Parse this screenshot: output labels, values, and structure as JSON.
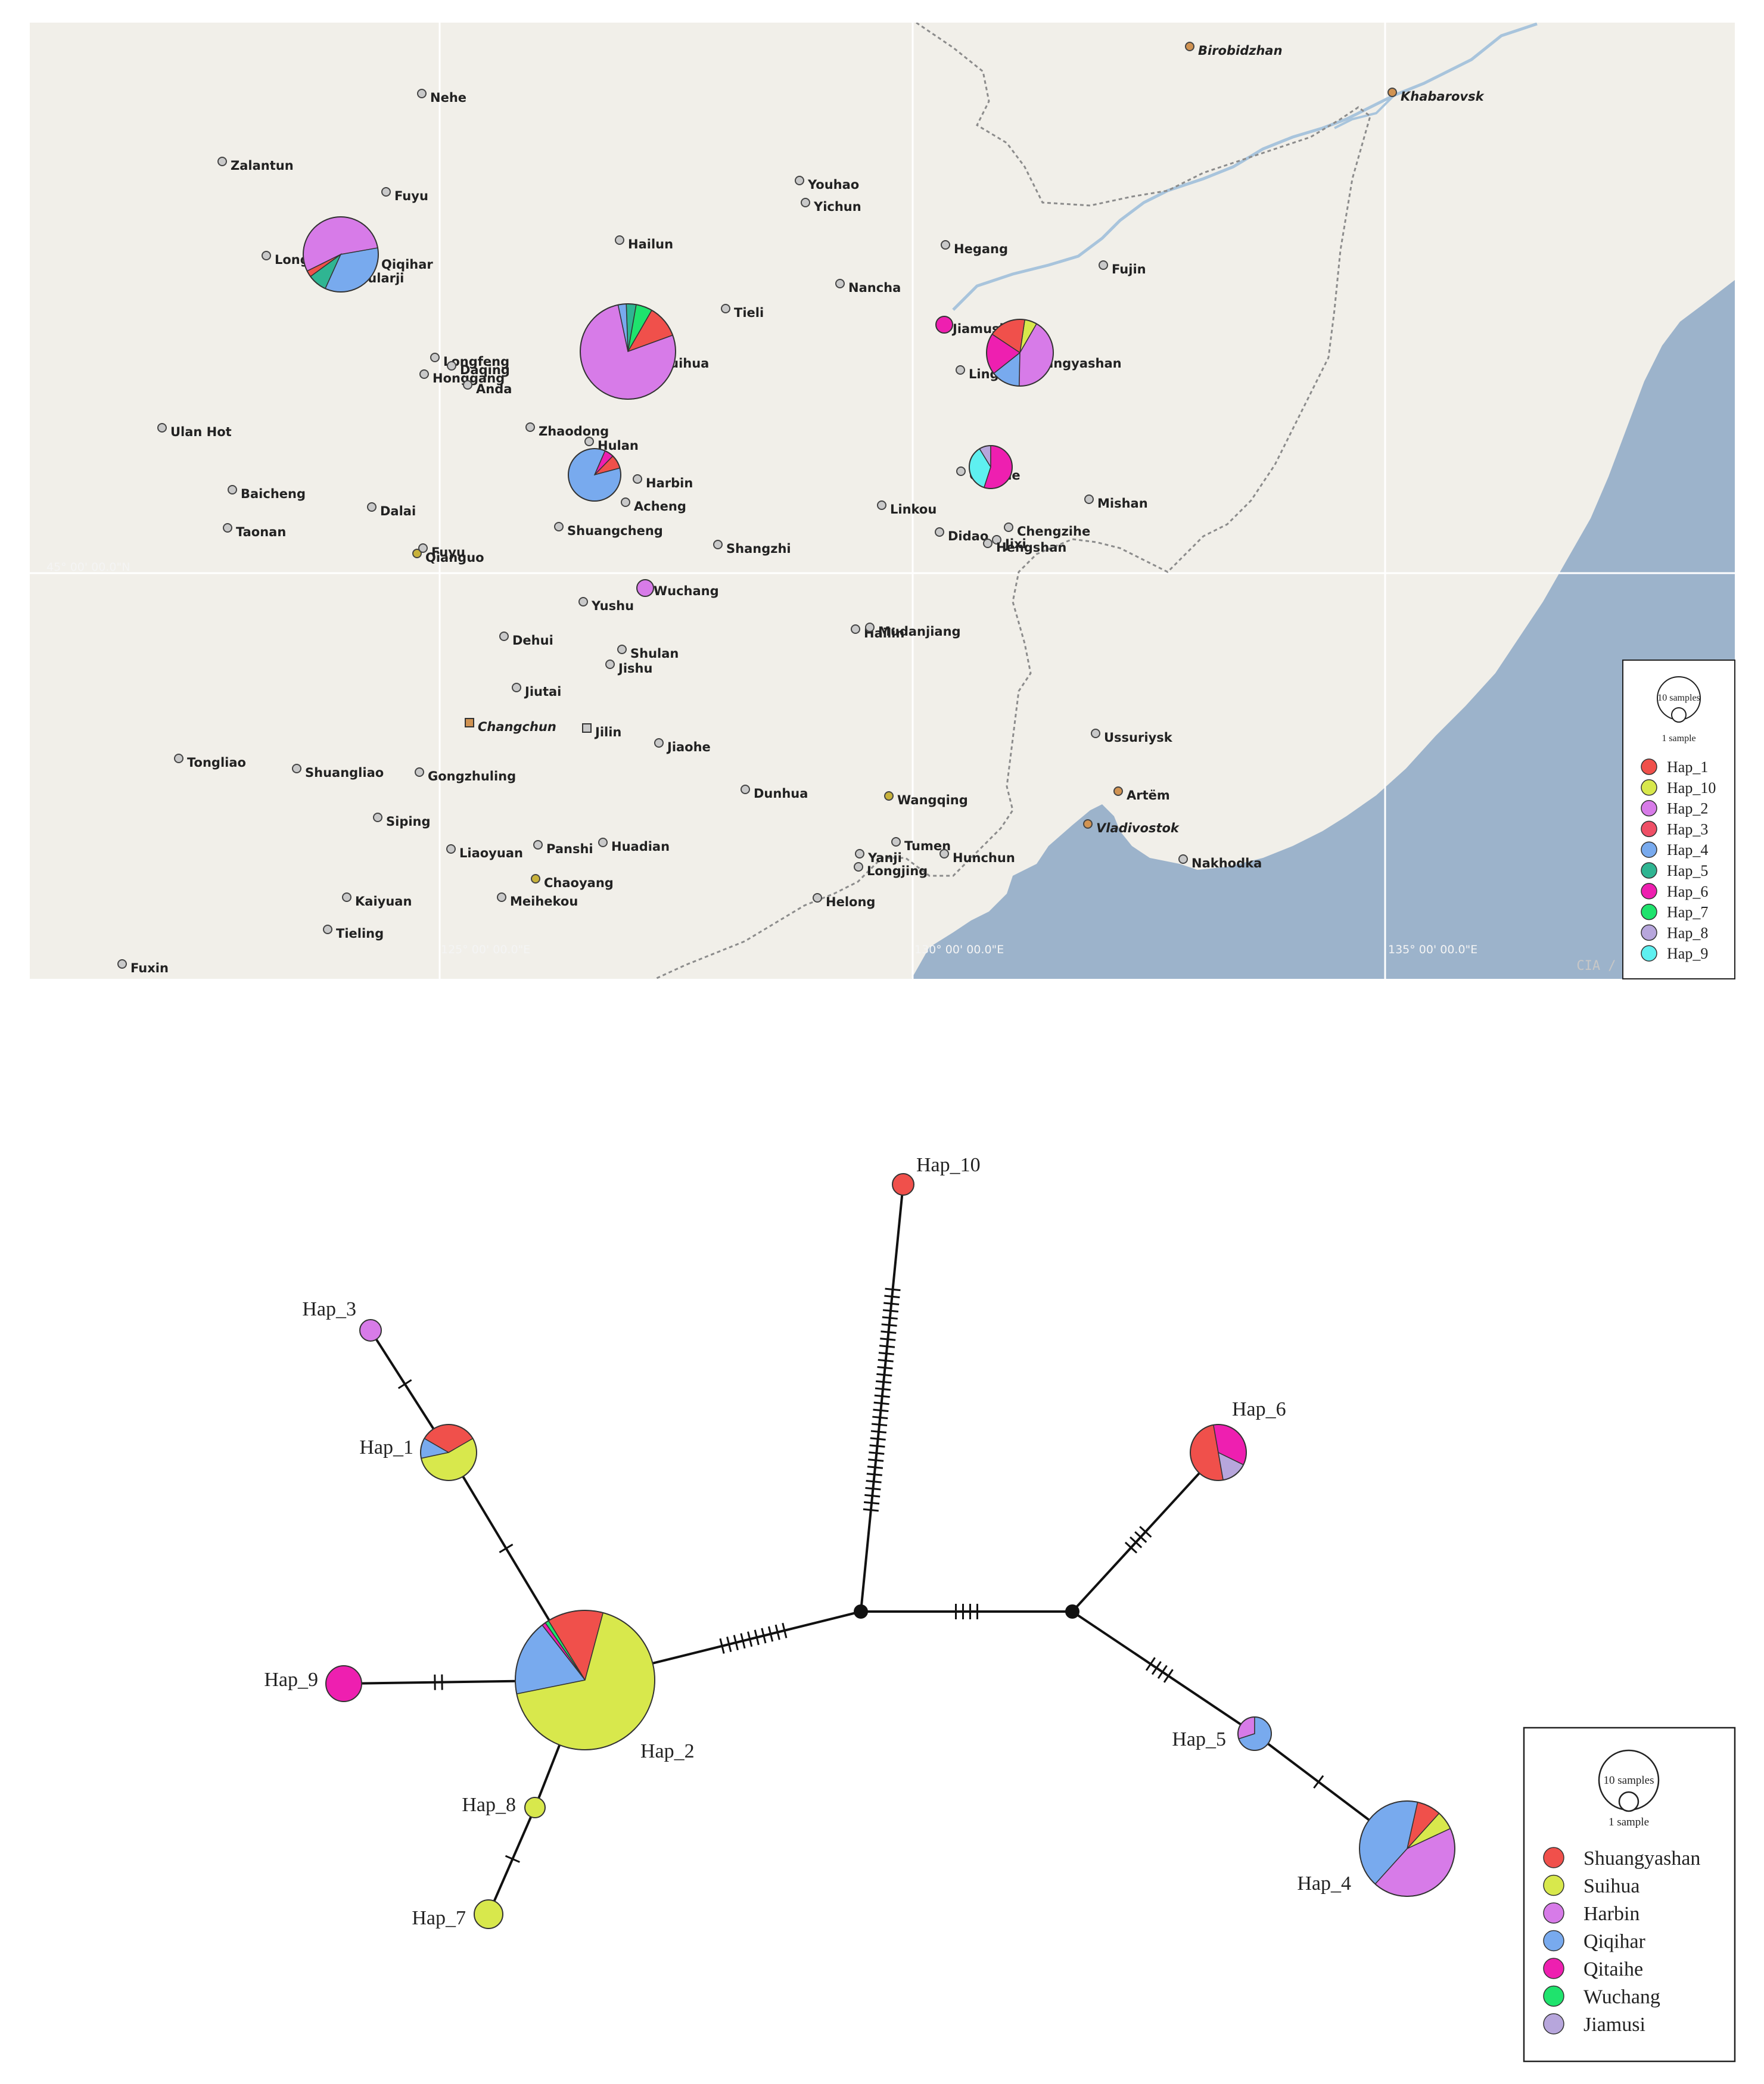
{
  "map": {
    "colors": {
      "land": "#f1efe9",
      "sea": "#9cb3cb",
      "grid": "#ffffff",
      "border": "#8c8c8c",
      "river": "#a8c4dc",
      "city_dot": "#c9c9c9",
      "capital_dot": "#d19352"
    },
    "grid_labels": [
      {
        "text": "45° 00' 00.0\"N"
      },
      {
        "text": "125° 00' 00.0\"E"
      },
      {
        "text": "130° 00' 00.0\"E"
      },
      {
        "text": "135° 00' 00.0\"E"
      }
    ],
    "credit": "CIA / Public Domain",
    "cities": [
      {
        "name": "Nehe"
      },
      {
        "name": "Zalantun"
      },
      {
        "name": "Fuyu"
      },
      {
        "name": "Longjiang"
      },
      {
        "name": "Qiqihar"
      },
      {
        "name": "Fularji"
      },
      {
        "name": "Hailun"
      },
      {
        "name": "Youhao"
      },
      {
        "name": "Yichun"
      },
      {
        "name": "Hegang"
      },
      {
        "name": "Fujin"
      },
      {
        "name": "Nancha"
      },
      {
        "name": "Tieli"
      },
      {
        "name": "Jiamusi"
      },
      {
        "name": "Shuangyashan"
      },
      {
        "name": "Lingdong"
      },
      {
        "name": "Suihua"
      },
      {
        "name": "Longfeng"
      },
      {
        "name": "Daqing"
      },
      {
        "name": "Honggang"
      },
      {
        "name": "Anda"
      },
      {
        "name": "Zhaodong"
      },
      {
        "name": "Hulan"
      },
      {
        "name": "Harbin"
      },
      {
        "name": "Acheng"
      },
      {
        "name": "Ulan Hot"
      },
      {
        "name": "Baicheng"
      },
      {
        "name": "Dalai"
      },
      {
        "name": "Taonan"
      },
      {
        "name": "Qianguo"
      },
      {
        "name": "Fuyu"
      },
      {
        "name": "Shuangcheng"
      },
      {
        "name": "Shangzhi"
      },
      {
        "name": "Qitaihe"
      },
      {
        "name": "Linkou"
      },
      {
        "name": "Didao"
      },
      {
        "name": "Chengzihe"
      },
      {
        "name": "Jixi"
      },
      {
        "name": "Hengshan"
      },
      {
        "name": "Mishan"
      },
      {
        "name": "Wuchang"
      },
      {
        "name": "Yushu"
      },
      {
        "name": "Hailin"
      },
      {
        "name": "Mudanjiang"
      },
      {
        "name": "Dehui"
      },
      {
        "name": "Shulan"
      },
      {
        "name": "Jishu"
      },
      {
        "name": "Jiutai"
      },
      {
        "name": "Changchun"
      },
      {
        "name": "Jilin"
      },
      {
        "name": "Jiaohe"
      },
      {
        "name": "Tongliao"
      },
      {
        "name": "Shuangliao"
      },
      {
        "name": "Gongzhuling"
      },
      {
        "name": "Dunhua"
      },
      {
        "name": "Wangqing"
      },
      {
        "name": "Siping"
      },
      {
        "name": "Liaoyuan"
      },
      {
        "name": "Panshi"
      },
      {
        "name": "Huadian"
      },
      {
        "name": "Tumen"
      },
      {
        "name": "Yanji"
      },
      {
        "name": "Longjing"
      },
      {
        "name": "Hunchun"
      },
      {
        "name": "Chaoyang"
      },
      {
        "name": "Meihekou"
      },
      {
        "name": "Kaiyuan"
      },
      {
        "name": "Helong"
      },
      {
        "name": "Tieling"
      },
      {
        "name": "Fuxin"
      },
      {
        "name": "Birobidzhan"
      },
      {
        "name": "Khabarovsk"
      },
      {
        "name": "Ussuriysk"
      },
      {
        "name": "Artëm"
      },
      {
        "name": "Vladivostok"
      },
      {
        "name": "Nakhodka"
      }
    ],
    "legend": {
      "scale_big": "10 samples",
      "scale_small": "1 sample",
      "items": [
        {
          "label": "Hap_1",
          "color": "#f0504b"
        },
        {
          "label": "Hap_10",
          "color": "#d8e84c"
        },
        {
          "label": "Hap_2",
          "color": "#d77be8"
        },
        {
          "label": "Hap_3",
          "color": "#ef4f66"
        },
        {
          "label": "Hap_4",
          "color": "#78aaee"
        },
        {
          "label": "Hap_5",
          "color": "#2fb592"
        },
        {
          "label": "Hap_6",
          "color": "#ee1fb0"
        },
        {
          "label": "Hap_7",
          "color": "#1fe36d"
        },
        {
          "label": "Hap_8",
          "color": "#b7a6dc"
        },
        {
          "label": "Hap_9",
          "color": "#5ef0f0"
        }
      ]
    },
    "pies": [
      {
        "site": "Qiqihar",
        "total": 11,
        "slices": [
          {
            "hap": "Hap_2",
            "value": 6
          },
          {
            "hap": "Hap_1",
            "value": 0.3
          },
          {
            "hap": "Hap_5",
            "value": 0.9
          },
          {
            "hap": "Hap_4",
            "value": 3.8
          }
        ]
      },
      {
        "site": "Suihua",
        "total": 18,
        "slices": [
          {
            "hap": "Hap_1",
            "value": 2
          },
          {
            "hap": "Hap_7",
            "value": 1
          },
          {
            "hap": "Hap_5",
            "value": 0.6
          },
          {
            "hap": "Hap_4",
            "value": 0.5
          },
          {
            "hap": "Hap_2",
            "value": 13.9
          }
        ]
      },
      {
        "site": "Harbin",
        "total": 7,
        "slices": [
          {
            "hap": "Hap_1",
            "value": 0.6
          },
          {
            "hap": "Hap_6",
            "value": 0.4
          },
          {
            "hap": "Hap_4",
            "value": 6
          }
        ]
      },
      {
        "site": "Wuchang",
        "total": 1,
        "slices": [
          {
            "hap": "Hap_2",
            "value": 1
          }
        ]
      },
      {
        "site": "Jiamusi",
        "total": 1,
        "slices": [
          {
            "hap": "Hap_6",
            "value": 1
          }
        ]
      },
      {
        "site": "Shuangyashan",
        "total": 10,
        "slices": [
          {
            "hap": "Hap_10",
            "value": 0.6
          },
          {
            "hap": "Hap_1",
            "value": 1.8
          },
          {
            "hap": "Hap_6",
            "value": 2
          },
          {
            "hap": "Hap_4",
            "value": 1.4
          },
          {
            "hap": "Hap_2",
            "value": 4.2
          }
        ]
      },
      {
        "site": "Qitaihe",
        "total": 4,
        "slices": [
          {
            "hap": "Hap_8",
            "value": 0.35
          },
          {
            "hap": "Hap_9",
            "value": 1.45
          },
          {
            "hap": "Hap_6",
            "value": 2.2
          }
        ]
      }
    ]
  },
  "network": {
    "colors": {
      "Shuangyashan": "#f0504b",
      "Suihua": "#d8e84c",
      "Harbin": "#d77be8",
      "Qiqihar": "#78aaee",
      "Qitaihe": "#ee1fb0",
      "Wuchang": "#1fe36d",
      "Jiamusi": "#b7a6dc"
    },
    "nodes": [
      {
        "id": "Hap_10",
        "label": "Hap_10",
        "slices": [
          {
            "pop": "Shuangyashan",
            "value": 1
          }
        ]
      },
      {
        "id": "Hap_3",
        "label": "Hap_3",
        "slices": [
          {
            "pop": "Harbin",
            "value": 1
          }
        ]
      },
      {
        "id": "Hap_1",
        "label": "Hap_1",
        "slices": [
          {
            "pop": "Shuangyashan",
            "value": 1
          },
          {
            "pop": "Qiqihar",
            "value": 0.35
          },
          {
            "pop": "Suihua",
            "value": 1.65
          }
        ]
      },
      {
        "id": "Hap_9",
        "label": "Hap_9",
        "slices": [
          {
            "pop": "Qitaihe",
            "value": 1
          }
        ]
      },
      {
        "id": "Hap_2",
        "label": "Hap_2",
        "slices": [
          {
            "pop": "Shuangyashan",
            "value": 2.2
          },
          {
            "pop": "Wuchang",
            "value": 0.15
          },
          {
            "pop": "Qitaihe",
            "value": 0.15
          },
          {
            "pop": "Qiqihar",
            "value": 3
          },
          {
            "pop": "Suihua",
            "value": 11.5
          }
        ]
      },
      {
        "id": "Hap_8",
        "label": "Hap_8",
        "slices": [
          {
            "pop": "Suihua",
            "value": 1
          }
        ]
      },
      {
        "id": "Hap_7",
        "label": "Hap_7",
        "slices": [
          {
            "pop": "Suihua",
            "value": 1
          }
        ]
      },
      {
        "id": "Hap_6",
        "label": "Hap_6",
        "slices": [
          {
            "pop": "Shuangyashan",
            "value": 2
          },
          {
            "pop": "Jiamusi",
            "value": 0.6
          },
          {
            "pop": "Qitaihe",
            "value": 1.4
          }
        ]
      },
      {
        "id": "Hap_5",
        "label": "Hap_5",
        "slices": [
          {
            "pop": "Harbin",
            "value": 0.3
          },
          {
            "pop": "Qiqihar",
            "value": 0.7
          }
        ]
      },
      {
        "id": "Hap_4",
        "label": "Hap_4",
        "slices": [
          {
            "pop": "Suihua",
            "value": 0.7
          },
          {
            "pop": "Shuangyashan",
            "value": 0.9
          },
          {
            "pop": "Qiqihar",
            "value": 4.6
          },
          {
            "pop": "Harbin",
            "value": 4.8
          }
        ]
      },
      {
        "id": "mv1",
        "label": "",
        "slices": []
      },
      {
        "id": "mv2",
        "label": "",
        "slices": []
      }
    ],
    "edges": [
      {
        "from": "Hap_3",
        "to": "Hap_1",
        "mutations": 1
      },
      {
        "from": "Hap_1",
        "to": "Hap_2",
        "mutations": 1
      },
      {
        "from": "Hap_9",
        "to": "Hap_2",
        "mutations": 2
      },
      {
        "from": "Hap_2",
        "to": "Hap_8",
        "mutations": 0
      },
      {
        "from": "Hap_8",
        "to": "Hap_7",
        "mutations": 1
      },
      {
        "from": "Hap_2",
        "to": "mv1",
        "mutations": 10
      },
      {
        "from": "mv1",
        "to": "Hap_10",
        "mutations": 32
      },
      {
        "from": "mv1",
        "to": "mv2",
        "mutations": 4
      },
      {
        "from": "mv2",
        "to": "Hap_6",
        "mutations": 4
      },
      {
        "from": "mv2",
        "to": "Hap_5",
        "mutations": 4
      },
      {
        "from": "Hap_5",
        "to": "Hap_4",
        "mutations": 1
      }
    ],
    "legend": {
      "scale_big": "10 samples",
      "scale_small": "1 sample",
      "items": [
        "Shuangyashan",
        "Suihua",
        "Harbin",
        "Qiqihar",
        "Qitaihe",
        "Wuchang",
        "Jiamusi"
      ]
    }
  }
}
